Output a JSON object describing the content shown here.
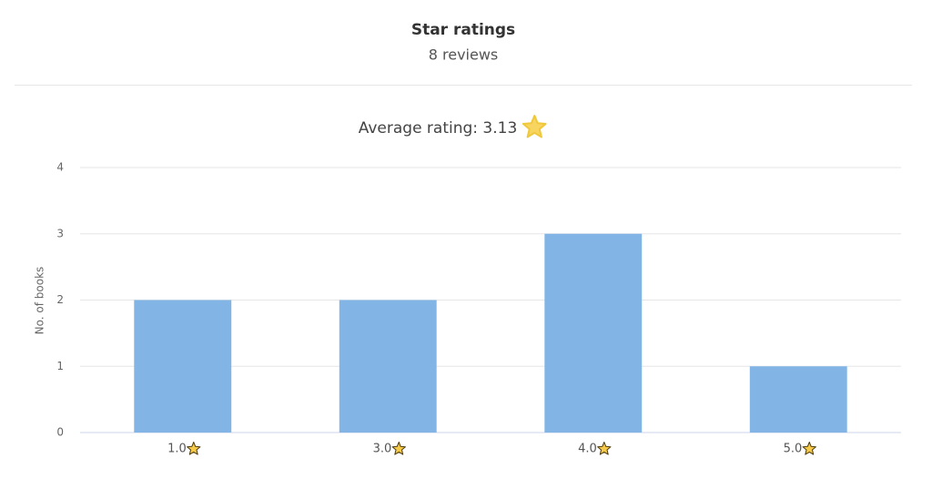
{
  "chart_data": {
    "type": "bar",
    "title": "Star ratings",
    "subtitle": "8 reviews",
    "annotation": "Average rating: 3.13",
    "y_label": "No. of books",
    "categories": [
      "1.0",
      "3.0",
      "4.0",
      "5.0"
    ],
    "values": [
      2,
      2,
      3,
      1
    ],
    "color": "#82b5e6",
    "ylim": [
      0,
      4
    ],
    "yticks": [
      0,
      1,
      2,
      3,
      4
    ],
    "grid": true
  }
}
